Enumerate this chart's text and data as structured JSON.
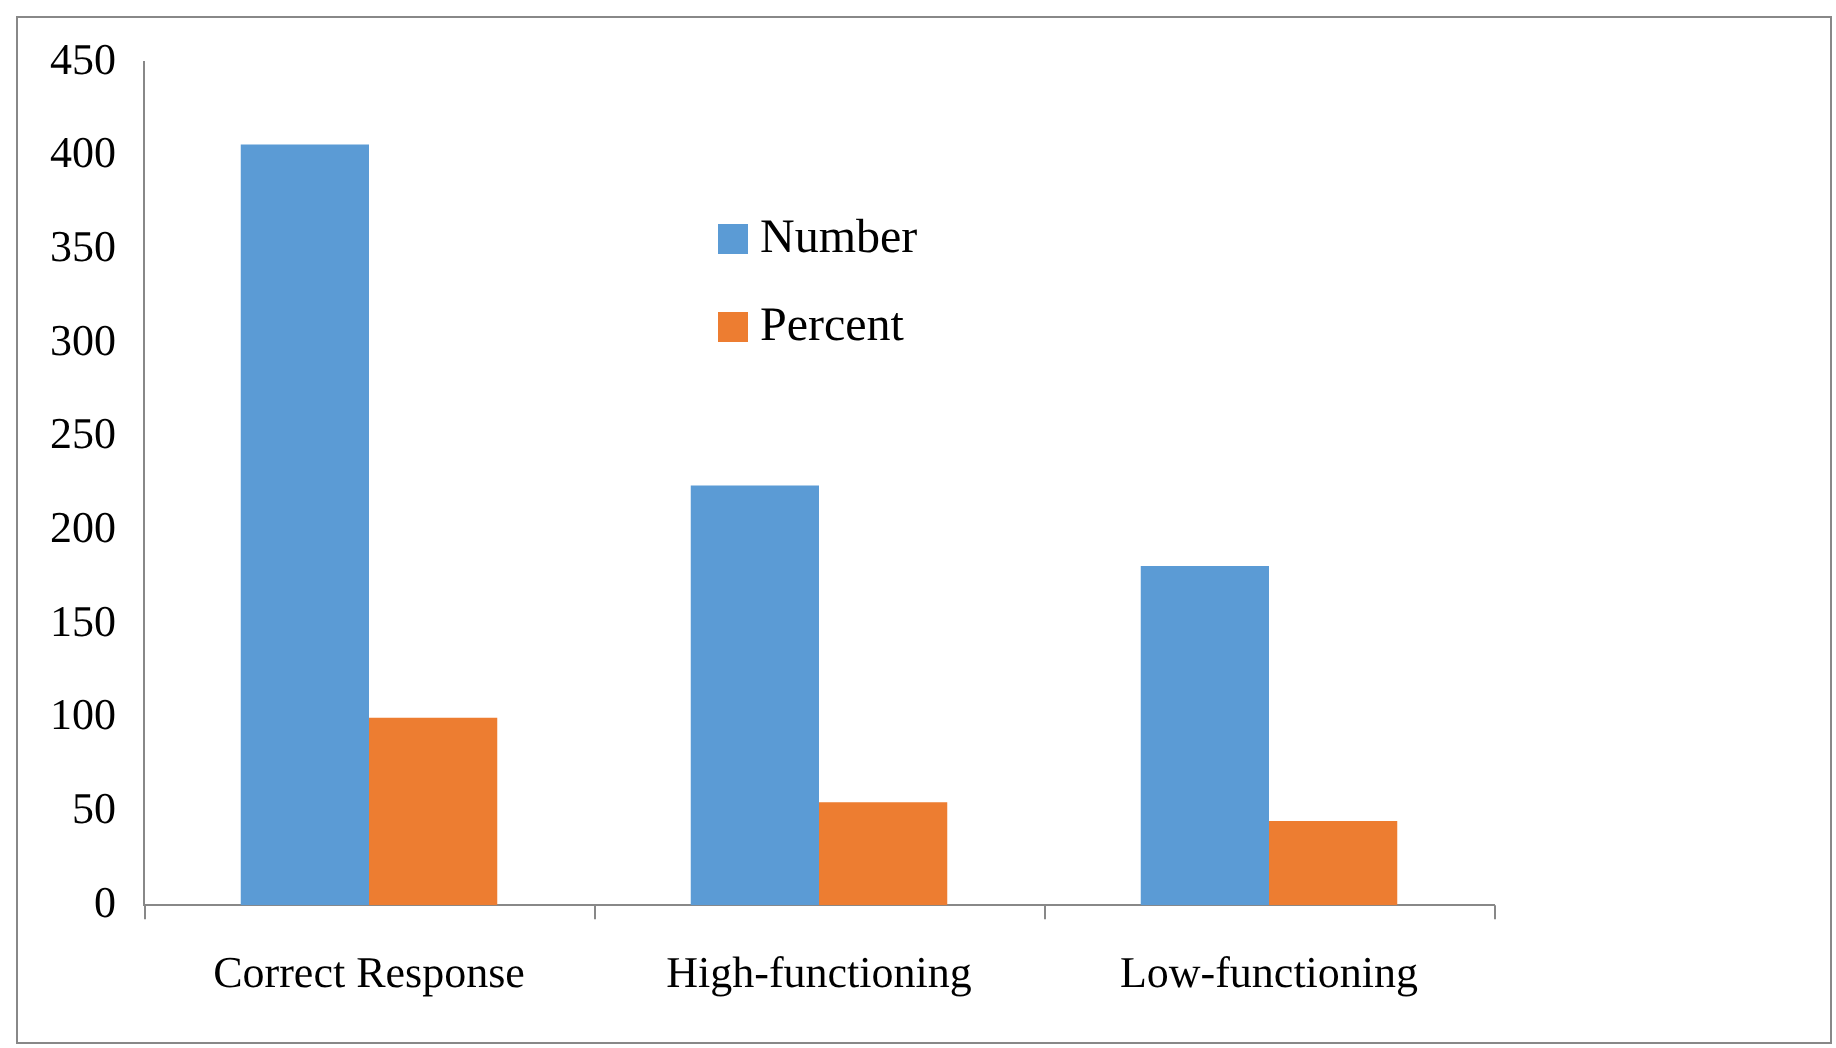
{
  "chart_data": {
    "type": "bar",
    "categories": [
      "Correct Response",
      "High-functioning",
      "Low-functioning"
    ],
    "series": [
      {
        "name": "Number",
        "color": "#5b9bd5",
        "values": [
          406,
          224,
          181
        ]
      },
      {
        "name": "Percent",
        "color": "#ed7d31",
        "values": [
          100,
          55,
          45
        ]
      }
    ],
    "ylim": [
      0,
      450
    ],
    "yticks": [
      0,
      50,
      100,
      150,
      200,
      250,
      300,
      350,
      400,
      450
    ],
    "grid": false,
    "legend": "top"
  }
}
